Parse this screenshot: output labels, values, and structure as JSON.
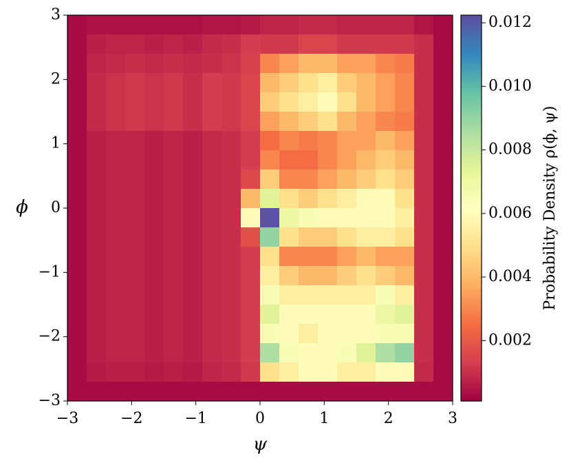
{
  "chart_data": {
    "type": "heatmap",
    "xlabel": "ψ",
    "ylabel": "ϕ",
    "colorbar_label": "Probability Density ρ(ϕ, ψ)",
    "colormap": "Spectral",
    "xlim": [
      -3,
      3
    ],
    "ylim": [
      -3,
      3
    ],
    "xticks": [
      {
        "value": -3,
        "label": "−3"
      },
      {
        "value": -2,
        "label": "−2"
      },
      {
        "value": -1,
        "label": "−1"
      },
      0,
      1,
      2,
      3
    ],
    "yticks": [
      {
        "value": -3,
        "label": "−3"
      },
      {
        "value": -2,
        "label": "−2"
      },
      {
        "value": -1,
        "label": "−1"
      },
      0,
      1,
      2,
      3
    ],
    "clim": [
      0.0001,
      0.01224
    ],
    "cticks": [
      {
        "value": 0.002,
        "label": "0.002"
      },
      {
        "value": 0.004,
        "label": "0.004"
      },
      {
        "value": 0.006,
        "label": "0.006"
      },
      {
        "value": 0.008,
        "label": "0.008"
      },
      {
        "value": 0.01,
        "label": "0.010"
      },
      {
        "value": 0.012,
        "label": "0.012"
      }
    ],
    "z_rows_top_to_bottom": [
      [
        0.0003,
        0.0004,
        0.0004,
        0.0004,
        0.0004,
        0.0004,
        0.0004,
        0.0005,
        0.0005,
        0.0006,
        0.0008,
        0.0008,
        0.0009,
        0.0009,
        0.0008,
        0.0008,
        0.0008,
        0.0008,
        0.0005,
        0.0003
      ],
      [
        0.0003,
        0.0007,
        0.0008,
        0.0008,
        0.0007,
        0.0008,
        0.0007,
        0.0009,
        0.001,
        0.0013,
        0.0012,
        0.0012,
        0.0015,
        0.0015,
        0.0012,
        0.0012,
        0.0012,
        0.0012,
        0.001,
        0.0003
      ],
      [
        0.0003,
        0.0008,
        0.0009,
        0.001,
        0.0009,
        0.001,
        0.0009,
        0.001,
        0.0011,
        0.0014,
        0.003,
        0.0035,
        0.004,
        0.004,
        0.0035,
        0.0035,
        0.003,
        0.0028,
        0.001,
        0.0003
      ],
      [
        0.0003,
        0.0009,
        0.0011,
        0.0012,
        0.0011,
        0.0012,
        0.001,
        0.0013,
        0.0012,
        0.0015,
        0.004,
        0.0045,
        0.005,
        0.0055,
        0.0045,
        0.004,
        0.0035,
        0.003,
        0.001,
        0.0003
      ],
      [
        0.0003,
        0.0009,
        0.0011,
        0.0012,
        0.0011,
        0.0012,
        0.001,
        0.0013,
        0.0012,
        0.0015,
        0.0045,
        0.005,
        0.0055,
        0.006,
        0.005,
        0.004,
        0.0035,
        0.003,
        0.001,
        0.0003
      ],
      [
        0.0003,
        0.0009,
        0.0011,
        0.0012,
        0.0011,
        0.0012,
        0.001,
        0.0013,
        0.0012,
        0.0015,
        0.0035,
        0.004,
        0.0045,
        0.005,
        0.004,
        0.0035,
        0.003,
        0.0028,
        0.001,
        0.0003
      ],
      [
        0.0003,
        0.0007,
        0.0008,
        0.0008,
        0.0007,
        0.0008,
        0.0007,
        0.0009,
        0.001,
        0.0013,
        0.0025,
        0.003,
        0.0028,
        0.003,
        0.0035,
        0.0035,
        0.004,
        0.0035,
        0.001,
        0.0003
      ],
      [
        0.0003,
        0.0007,
        0.0008,
        0.0008,
        0.0007,
        0.0008,
        0.0007,
        0.0009,
        0.001,
        0.0013,
        0.003,
        0.0025,
        0.0025,
        0.003,
        0.0035,
        0.004,
        0.0045,
        0.004,
        0.001,
        0.0003
      ],
      [
        0.0003,
        0.0007,
        0.0008,
        0.0008,
        0.0007,
        0.0008,
        0.0007,
        0.0009,
        0.001,
        0.0016,
        0.0045,
        0.003,
        0.003,
        0.0035,
        0.004,
        0.0045,
        0.005,
        0.0045,
        0.001,
        0.0003
      ],
      [
        0.0003,
        0.0007,
        0.0008,
        0.0008,
        0.0007,
        0.0008,
        0.0007,
        0.0009,
        0.001,
        0.004,
        0.0075,
        0.005,
        0.0045,
        0.005,
        0.0055,
        0.006,
        0.006,
        0.005,
        0.001,
        0.0003
      ],
      [
        0.0003,
        0.0007,
        0.0008,
        0.0008,
        0.0007,
        0.0008,
        0.0007,
        0.0009,
        0.001,
        0.006,
        0.0122,
        0.007,
        0.0065,
        0.006,
        0.006,
        0.006,
        0.006,
        0.0055,
        0.001,
        0.0003
      ],
      [
        0.0003,
        0.0007,
        0.0008,
        0.0008,
        0.0007,
        0.0008,
        0.0007,
        0.0009,
        0.001,
        0.0018,
        0.009,
        0.005,
        0.0045,
        0.0045,
        0.005,
        0.0055,
        0.0055,
        0.005,
        0.001,
        0.0003
      ],
      [
        0.0003,
        0.0007,
        0.0008,
        0.0008,
        0.0007,
        0.0008,
        0.0007,
        0.0009,
        0.001,
        0.0013,
        0.005,
        0.003,
        0.003,
        0.003,
        0.0035,
        0.004,
        0.0035,
        0.0035,
        0.001,
        0.0003
      ],
      [
        0.0003,
        0.0007,
        0.0008,
        0.0008,
        0.0007,
        0.0008,
        0.0007,
        0.0009,
        0.001,
        0.0013,
        0.0055,
        0.0045,
        0.004,
        0.004,
        0.0045,
        0.005,
        0.0045,
        0.004,
        0.001,
        0.0003
      ],
      [
        0.0003,
        0.0007,
        0.0008,
        0.0008,
        0.0007,
        0.0008,
        0.0007,
        0.0009,
        0.001,
        0.0013,
        0.0065,
        0.0055,
        0.0055,
        0.0055,
        0.0055,
        0.0055,
        0.0065,
        0.0055,
        0.001,
        0.0003
      ],
      [
        0.0003,
        0.0007,
        0.0008,
        0.0008,
        0.0007,
        0.0008,
        0.0007,
        0.0009,
        0.001,
        0.0013,
        0.0075,
        0.006,
        0.006,
        0.006,
        0.006,
        0.006,
        0.007,
        0.0075,
        0.001,
        0.0003
      ],
      [
        0.0003,
        0.0007,
        0.0008,
        0.0008,
        0.0007,
        0.0008,
        0.0007,
        0.0009,
        0.001,
        0.0013,
        0.0065,
        0.006,
        0.0055,
        0.006,
        0.006,
        0.006,
        0.0065,
        0.0065,
        0.001,
        0.0003
      ],
      [
        0.0003,
        0.0007,
        0.0008,
        0.0008,
        0.0007,
        0.0008,
        0.0007,
        0.0009,
        0.001,
        0.0013,
        0.0085,
        0.0065,
        0.006,
        0.006,
        0.0065,
        0.0075,
        0.0085,
        0.009,
        0.001,
        0.0003
      ],
      [
        0.0003,
        0.0006,
        0.0007,
        0.0007,
        0.0006,
        0.0007,
        0.0006,
        0.0008,
        0.0009,
        0.0012,
        0.005,
        0.0055,
        0.006,
        0.006,
        0.0055,
        0.0055,
        0.006,
        0.006,
        0.0009,
        0.0003
      ],
      [
        0.0003,
        0.0003,
        0.0003,
        0.0003,
        0.0003,
        0.0003,
        0.0003,
        0.0003,
        0.0003,
        0.0003,
        0.0003,
        0.0003,
        0.0003,
        0.0003,
        0.0003,
        0.0003,
        0.0003,
        0.0003,
        0.0003,
        0.0003
      ]
    ]
  }
}
